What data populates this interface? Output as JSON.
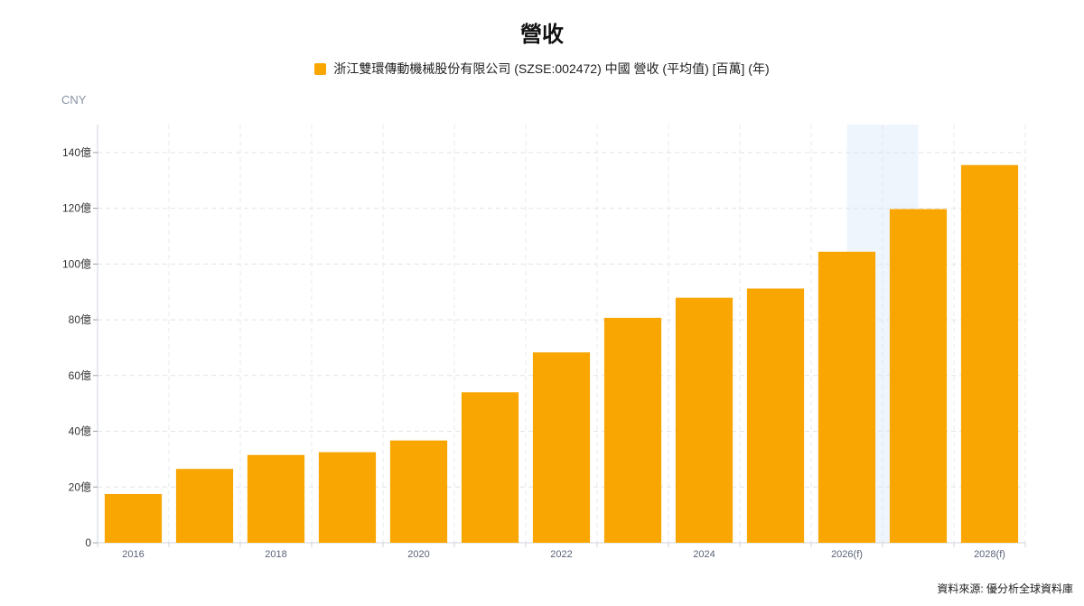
{
  "chart_data": {
    "type": "bar",
    "title": "營收",
    "legend": "top-center",
    "unit_label": "CNY",
    "categories": [
      "2016",
      "2017",
      "2018",
      "2019",
      "2020",
      "2021",
      "2022",
      "2023",
      "2024",
      "2025",
      "2026(f)",
      "2027(f)",
      "2028(f)"
    ],
    "x_tick_labels": [
      "2016",
      "",
      "2018",
      "",
      "2020",
      "",
      "2022",
      "",
      "2024",
      "",
      "2026(f)",
      "",
      "2028(f)"
    ],
    "series": [
      {
        "name": "浙江雙環傳動機械股份有限公司 (SZSE:002472) 中國 營收 (平均值) [百萬] (年)",
        "color": "#f9a602",
        "values": [
          17.5,
          26.5,
          31.5,
          32.5,
          36.7,
          54.0,
          68.3,
          80.7,
          87.9,
          91.2,
          104.4,
          119.7,
          135.5
        ]
      }
    ],
    "ylim": [
      0,
      150
    ],
    "y_ticks": [
      0,
      20,
      40,
      60,
      80,
      100,
      120,
      140
    ],
    "y_tick_labels": [
      "0",
      "20億",
      "40億",
      "60億",
      "80億",
      "100億",
      "120億",
      "140億"
    ],
    "grid": true,
    "forecast_highlight": [
      "2026(f)",
      "2027(f)"
    ],
    "highlight_color": "#eef5fc"
  },
  "source_text": "資料來源: 優分析全球資料庫"
}
